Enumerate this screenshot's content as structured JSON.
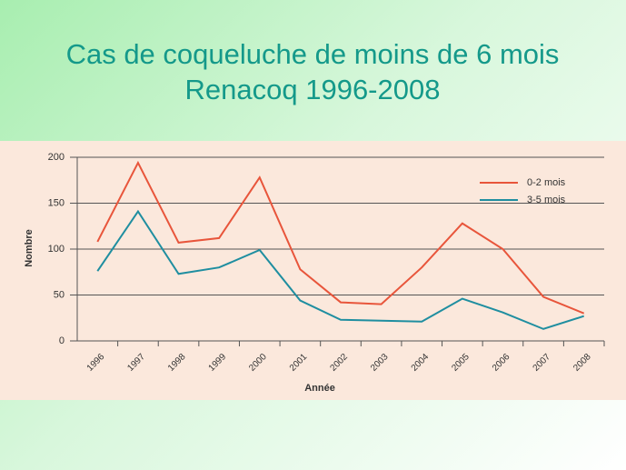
{
  "chart_data": {
    "type": "line",
    "title": "Cas de coqueluche de moins de 6 mois",
    "subtitle": "Renacoq 1996-2008",
    "x_label": "Année",
    "y_label": "Nombre",
    "categories": [
      "1996",
      "1997",
      "1998",
      "1999",
      "2000",
      "2001",
      "2002",
      "2003",
      "2004",
      "2005",
      "2006",
      "2007",
      "2008"
    ],
    "series": [
      {
        "name": "0-2 mois",
        "color": "#e8553b",
        "values": [
          108,
          194,
          107,
          112,
          178,
          78,
          42,
          40,
          80,
          128,
          100,
          48,
          30
        ]
      },
      {
        "name": "3-5 mois",
        "color": "#1f8ea0",
        "values": [
          76,
          141,
          73,
          80,
          99,
          44,
          23,
          22,
          21,
          46,
          31,
          13,
          27
        ]
      }
    ],
    "ylim": [
      0,
      200
    ],
    "yticks": [
      0,
      50,
      100,
      150,
      200
    ],
    "grid": true,
    "legend": "top-right"
  }
}
